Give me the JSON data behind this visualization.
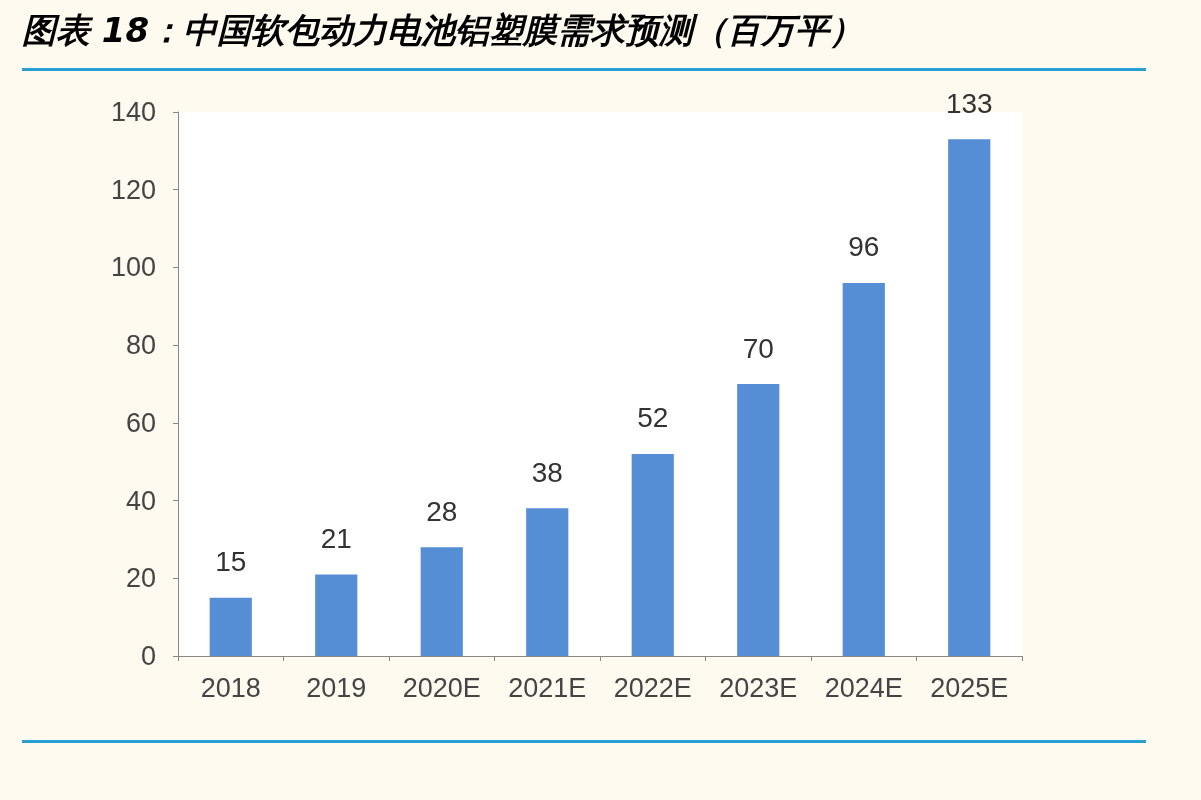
{
  "chart_data": {
    "type": "bar",
    "title": "图表 18：中国软包动力电池铝塑膜需求预测（百万平）",
    "categories": [
      "2018",
      "2019",
      "2020E",
      "2021E",
      "2022E",
      "2023E",
      "2024E",
      "2025E"
    ],
    "values": [
      15,
      21,
      28,
      38,
      52,
      70,
      96,
      133
    ],
    "color": "#558ed5",
    "ylim": [
      0,
      140
    ],
    "yticks": [
      0,
      20,
      40,
      60,
      80,
      100,
      120,
      140
    ],
    "grid": false,
    "data_labels": true
  }
}
